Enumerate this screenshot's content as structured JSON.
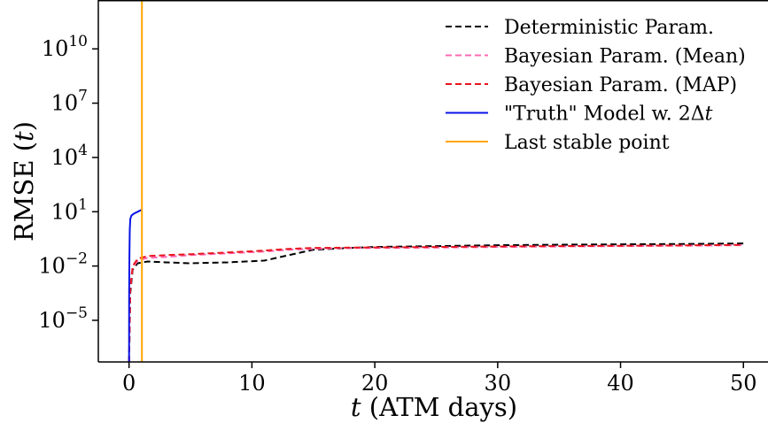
{
  "chart_data": {
    "type": "line",
    "xlabel": "t (ATM days)",
    "xlabel_var": "t",
    "xlabel_unit": " (ATM days)",
    "ylabel": "RMSE (t)",
    "ylabel_text": "RMSE (",
    "ylabel_var": "t",
    "ylabel_close": ")",
    "y_scale": "log",
    "xlim": [
      -2.5,
      52
    ],
    "ylim_log10": [
      -7.3,
      12.7
    ],
    "x_ticks": [
      {
        "value": 0,
        "label": "0"
      },
      {
        "value": 10,
        "label": "10"
      },
      {
        "value": 20,
        "label": "20"
      },
      {
        "value": 30,
        "label": "30"
      },
      {
        "value": 40,
        "label": "40"
      },
      {
        "value": 50,
        "label": "50"
      }
    ],
    "y_ticks": [
      {
        "exp": -5,
        "base": "10",
        "sup": "−5"
      },
      {
        "exp": -2,
        "base": "10",
        "sup": "−2"
      },
      {
        "exp": 1,
        "base": "10",
        "sup": "1"
      },
      {
        "exp": 4,
        "base": "10",
        "sup": "4"
      },
      {
        "exp": 7,
        "base": "10",
        "sup": "7"
      },
      {
        "exp": 10,
        "base": "10",
        "sup": "10"
      }
    ],
    "grid": false,
    "legend_position": "top-right",
    "series": [
      {
        "name": "Deterministic Param.",
        "color": "#000000",
        "style": "dashed",
        "x": [
          0,
          0.1,
          0.3,
          0.7,
          1.5,
          3,
          5,
          8,
          11,
          13,
          15,
          18,
          20,
          25,
          30,
          35,
          40,
          45,
          50
        ],
        "log10_y": [
          -7.3,
          -3.5,
          -2.2,
          -1.85,
          -1.75,
          -1.8,
          -1.85,
          -1.8,
          -1.7,
          -1.4,
          -1.1,
          -1.0,
          -0.95,
          -0.9,
          -0.85,
          -0.82,
          -0.8,
          -0.78,
          -0.75
        ]
      },
      {
        "name": "Bayesian Param. (Mean)",
        "color": "#ff69b4",
        "style": "dashed",
        "x": [
          0,
          0.1,
          0.3,
          0.7,
          1.5,
          3,
          5,
          8,
          11,
          13,
          15,
          18,
          20,
          25,
          30,
          35,
          40,
          45,
          50
        ],
        "log10_y": [
          -7.3,
          -3.3,
          -2.1,
          -1.7,
          -1.55,
          -1.5,
          -1.4,
          -1.3,
          -1.2,
          -1.1,
          -1.05,
          -1.0,
          -1.0,
          -0.98,
          -0.95,
          -0.92,
          -0.9,
          -0.88,
          -0.85
        ]
      },
      {
        "name": "Bayesian Param. (MAP)",
        "color": "#e8141e",
        "style": "dashed",
        "x": [
          0,
          0.1,
          0.3,
          0.7,
          1.5,
          3,
          5,
          8,
          11,
          13,
          15,
          18,
          20,
          25,
          30,
          35,
          40,
          45,
          50
        ],
        "log10_y": [
          -7.3,
          -3.2,
          -2.0,
          -1.6,
          -1.45,
          -1.4,
          -1.35,
          -1.25,
          -1.15,
          -1.05,
          -1.0,
          -0.98,
          -0.97,
          -0.95,
          -0.92,
          -0.9,
          -0.88,
          -0.86,
          -0.83
        ]
      },
      {
        "name": "\"Truth\" Model w. 2Δt",
        "name_prefix": "\"Truth\" Model w. 2Δ",
        "name_var": "t",
        "color": "#0a14e6",
        "style": "solid",
        "x": [
          0,
          0.01,
          0.03,
          0.06,
          0.1,
          0.2,
          0.4,
          0.7,
          1.0
        ],
        "log10_y": [
          -7.3,
          -3.5,
          -1.5,
          0.0,
          0.6,
          0.8,
          0.9,
          1.0,
          1.1
        ]
      },
      {
        "name": "Last stable point",
        "color": "#ffa500",
        "style": "solid",
        "x": [
          1.05,
          1.05
        ],
        "log10_y": [
          -7.3,
          12.7
        ]
      }
    ]
  }
}
